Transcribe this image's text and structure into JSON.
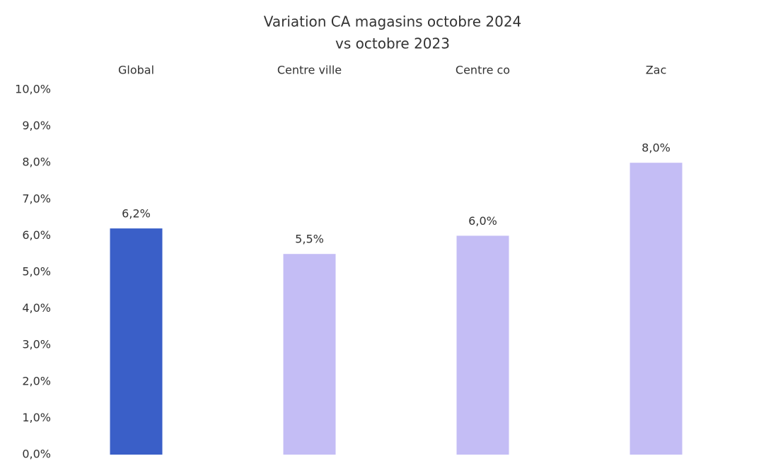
{
  "chart_data": {
    "type": "bar",
    "title": [
      "Variation CA magasins octobre 2024",
      "vs octobre 2023"
    ],
    "categories": [
      "Global",
      "Centre ville",
      "Centre co",
      "Zac"
    ],
    "values": [
      6.2,
      5.5,
      6.0,
      8.0
    ],
    "value_labels": [
      "6,2%",
      "5,5%",
      "6,0%",
      "8,0%"
    ],
    "colors": [
      "#3a5fc8",
      "#c4bdf5",
      "#c4bdf5",
      "#c4bdf5"
    ],
    "ylim": [
      0,
      10
    ],
    "yticks": [
      {
        "value": 0,
        "label": "0,0%"
      },
      {
        "value": 1,
        "label": "1,0%"
      },
      {
        "value": 2,
        "label": "2,0%"
      },
      {
        "value": 3,
        "label": "3,0%"
      },
      {
        "value": 4,
        "label": "4,0%"
      },
      {
        "value": 5,
        "label": "5,0%"
      },
      {
        "value": 6,
        "label": "6,0%"
      },
      {
        "value": 7,
        "label": "7,0%"
      },
      {
        "value": 8,
        "label": "8,0%"
      },
      {
        "value": 9,
        "label": "9,0%"
      },
      {
        "value": 10,
        "label": "10,0%"
      }
    ],
    "grid": false
  }
}
